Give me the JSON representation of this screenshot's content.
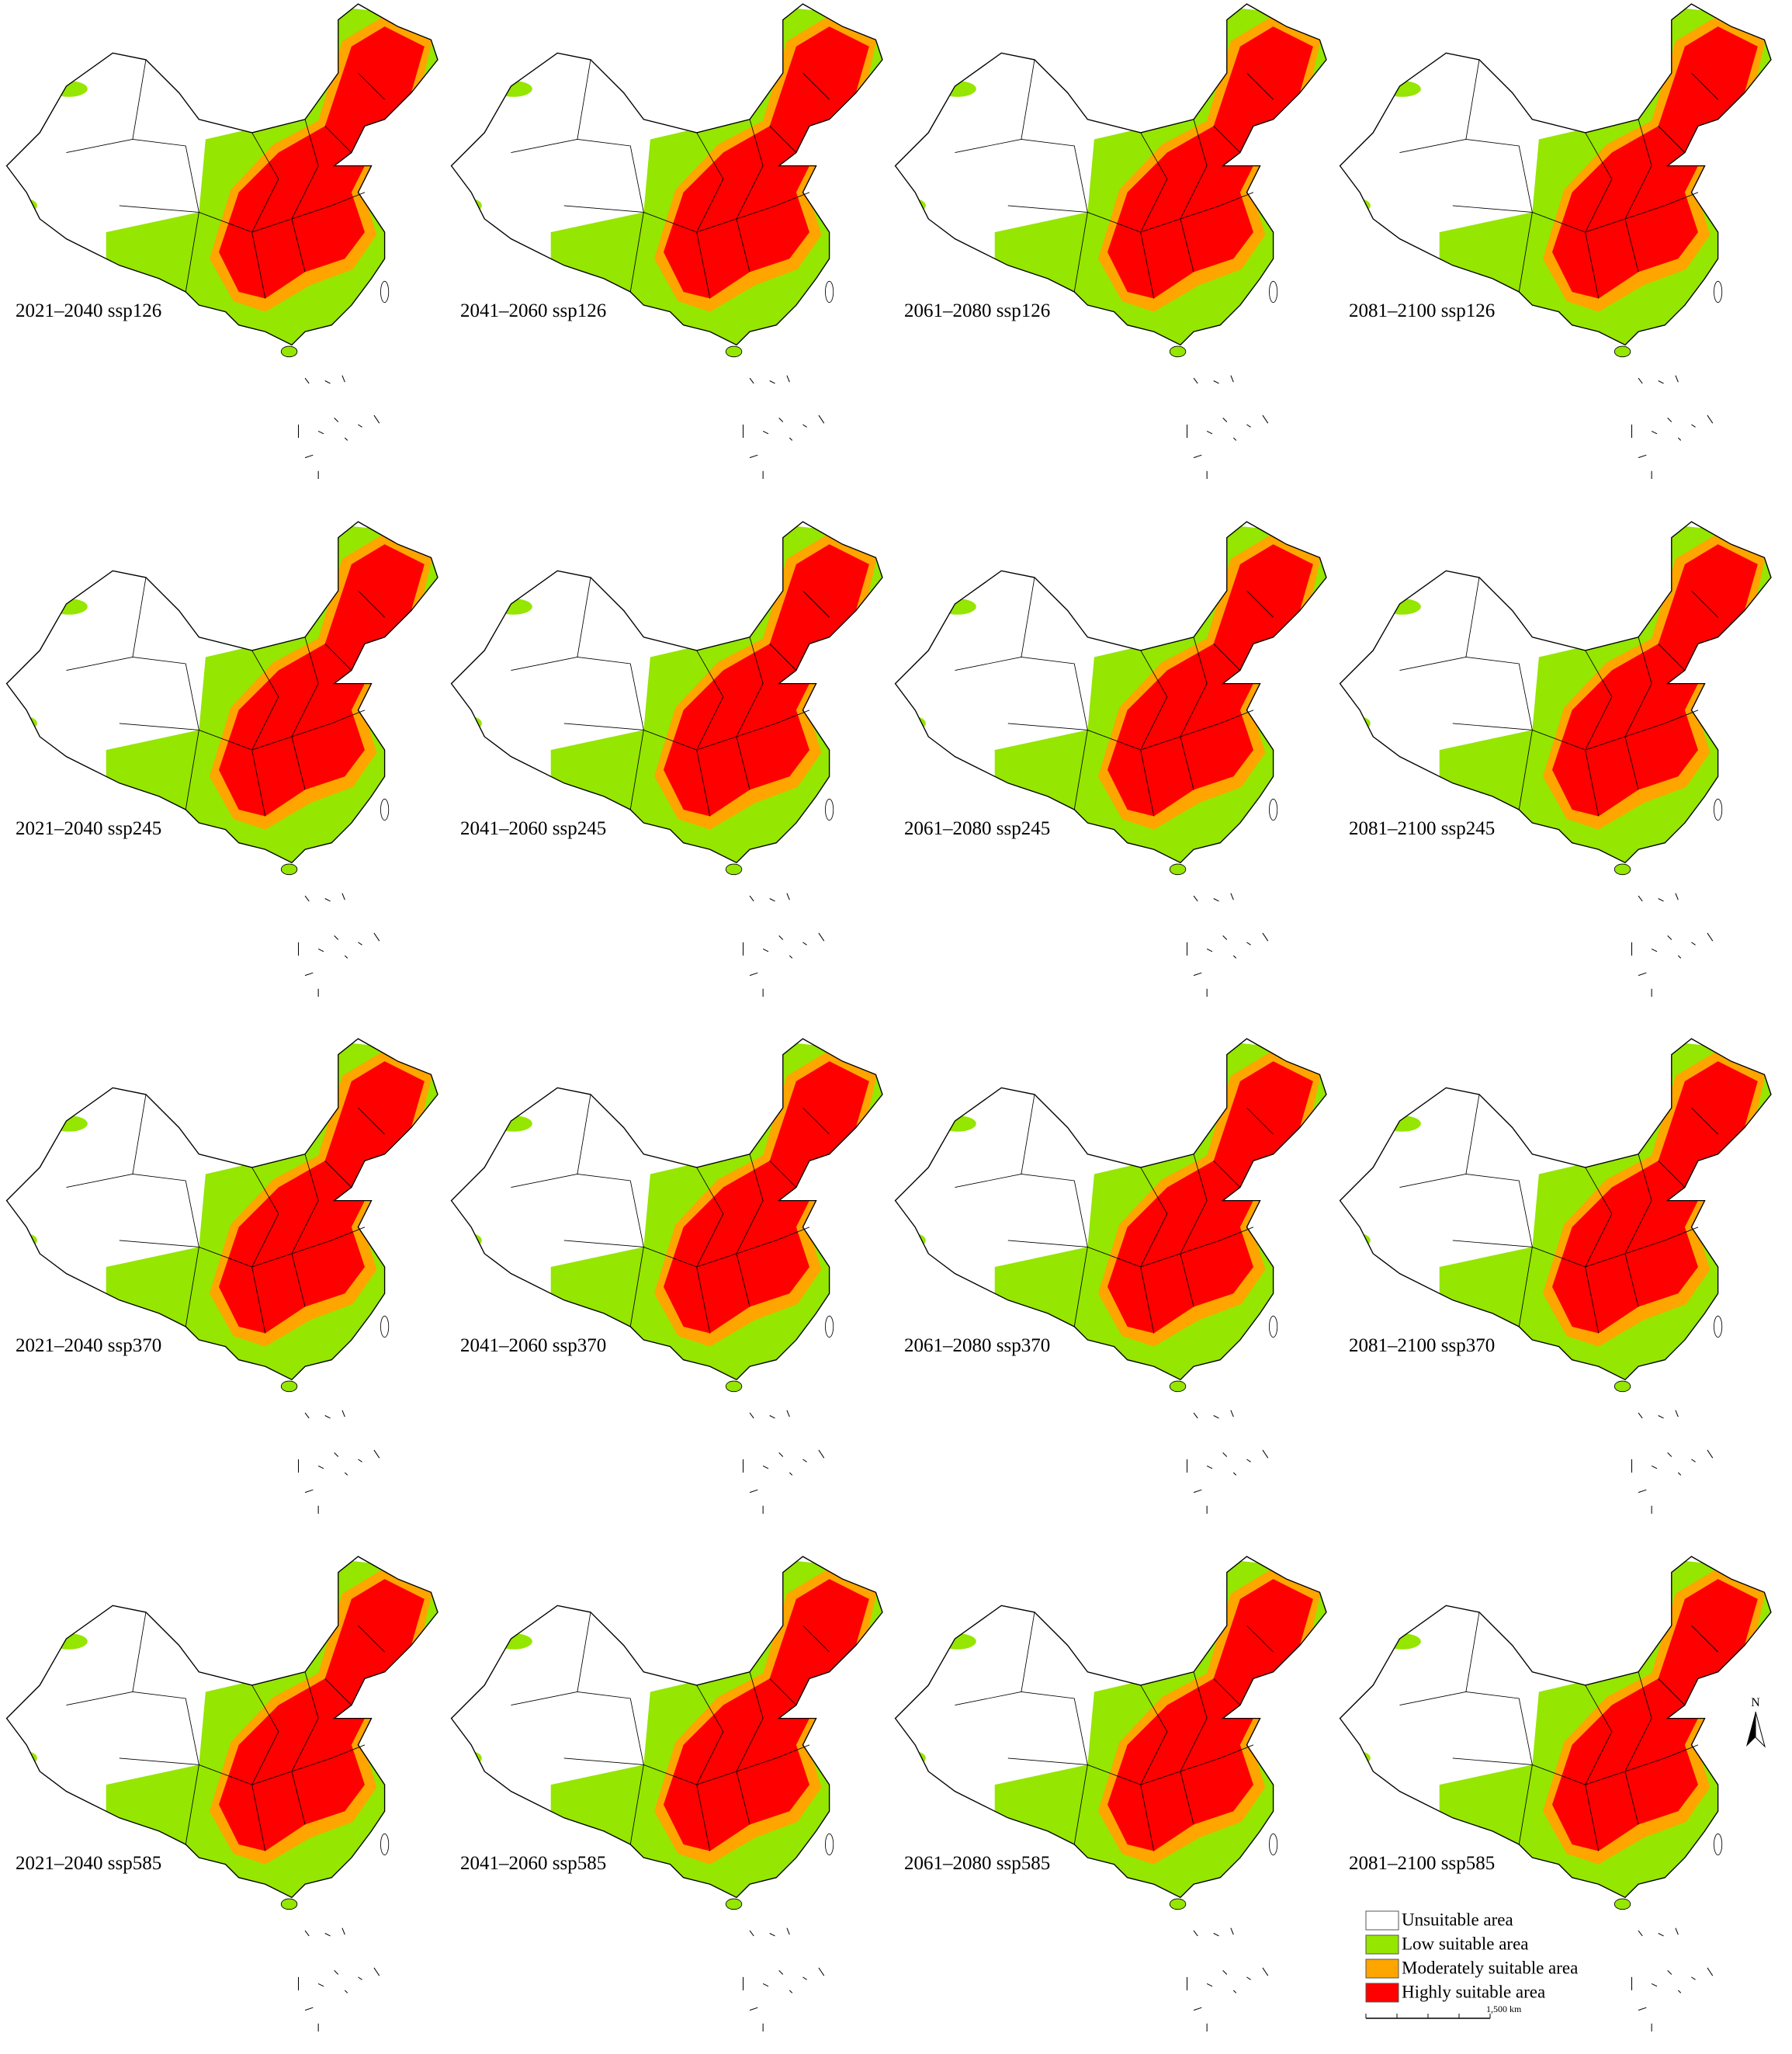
{
  "panels": [
    {
      "label": "2021–2040 ssp126"
    },
    {
      "label": "2041–2060 ssp126"
    },
    {
      "label": "2061–2080 ssp126"
    },
    {
      "label": "2081–2100 ssp126"
    },
    {
      "label": "2021–2040 ssp245"
    },
    {
      "label": "2041–2060 ssp245"
    },
    {
      "label": "2061–2080 ssp245"
    },
    {
      "label": "2081–2100 ssp245"
    },
    {
      "label": "2021–2040 ssp370"
    },
    {
      "label": "2041–2060 ssp370"
    },
    {
      "label": "2061–2080 ssp370"
    },
    {
      "label": "2081–2100 ssp370"
    },
    {
      "label": "2021–2040 ssp585"
    },
    {
      "label": "2041–2060 ssp585"
    },
    {
      "label": "2061–2080 ssp585"
    },
    {
      "label": "2081–2100 ssp585"
    }
  ],
  "legend": [
    {
      "label": "Unsuitable area",
      "color": "#ffffff"
    },
    {
      "label": "Low suitable area",
      "color": "#95e600"
    },
    {
      "label": "Moderately suitable area",
      "color": "#ffa500"
    },
    {
      "label": "Highly suitable area",
      "color": "#ff0000"
    }
  ],
  "north_label": "N",
  "scale_bar_label": "1,500 km"
}
